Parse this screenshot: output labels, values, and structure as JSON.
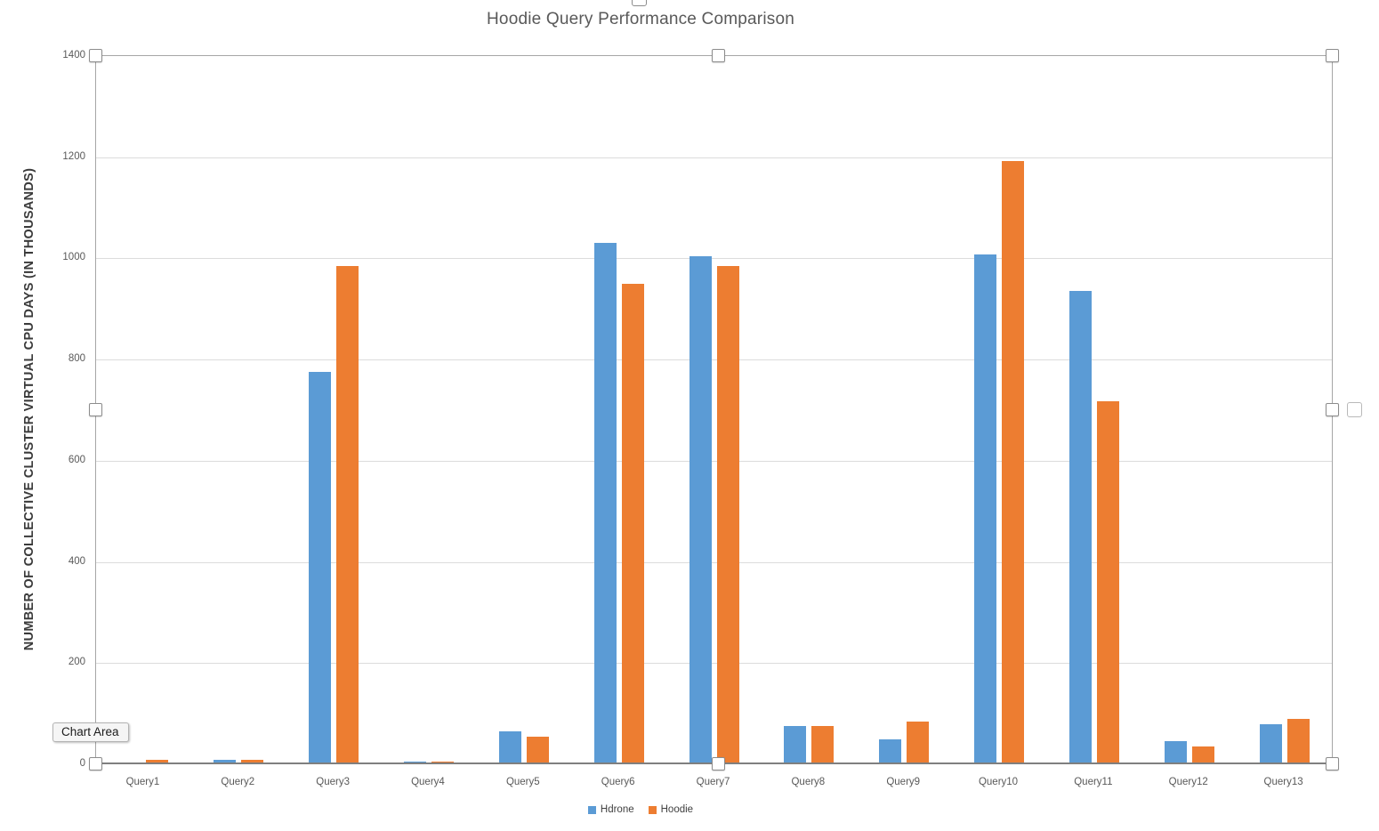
{
  "tooltip": {
    "label": "Chart Area"
  },
  "chart_data": {
    "type": "bar",
    "title": "Hoodie Query Performance Comparison",
    "ylabel": "NUMBER OF COLLECTIVE CLUSTER VIRTUAL CPU DAYS (IN THOUSANDS)",
    "xlabel": "",
    "categories": [
      "Query1",
      "Query2",
      "Query3",
      "Query4",
      "Query5",
      "Query6",
      "Query7",
      "Query8",
      "Query9",
      "Query10",
      "Query11",
      "Query12",
      "Query13"
    ],
    "series": [
      {
        "name": "Hdrone",
        "color": "#5B9BD5",
        "values": [
          4,
          8,
          775,
          5,
          65,
          1030,
          1005,
          75,
          50,
          1008,
          935,
          45,
          80
        ]
      },
      {
        "name": "Hoodie",
        "color": "#ED7D31",
        "values": [
          8,
          8,
          985,
          5,
          55,
          950,
          985,
          75,
          85,
          1192,
          718,
          35,
          90
        ]
      }
    ],
    "ylim": [
      0,
      1400
    ],
    "yticks": [
      0,
      200,
      400,
      600,
      800,
      1000,
      1200,
      1400
    ],
    "grid": true,
    "legend_position": "bottom",
    "colors": {
      "gridline": "#DCDCDC",
      "axis_line": "#7F7F7F",
      "selection_border": "#A6A6A6",
      "text": "#595959"
    }
  }
}
